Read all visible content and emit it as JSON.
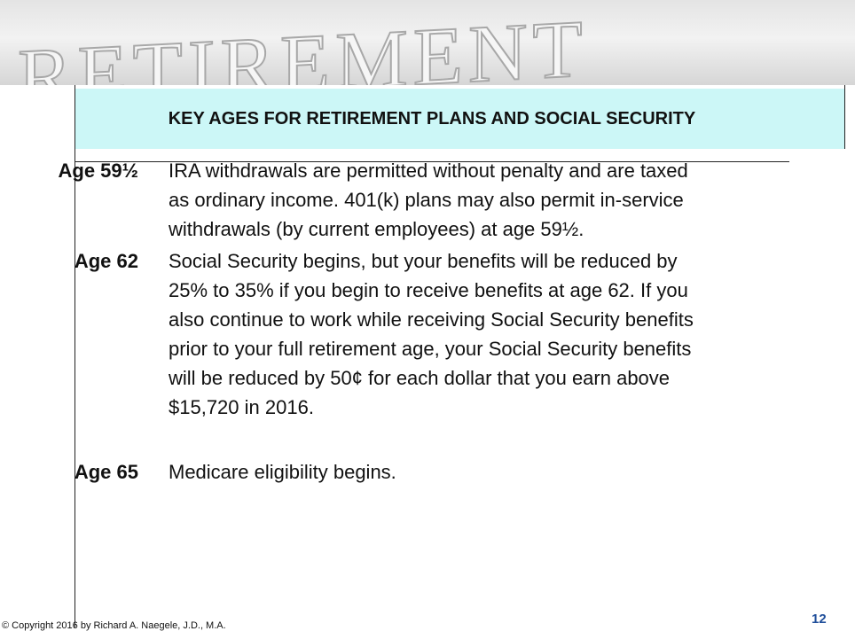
{
  "banner": {
    "text": "RETIREMENT"
  },
  "title": "KEY AGES FOR RETIREMENT PLANS AND SOCIAL SECURITY",
  "items": [
    {
      "age": "Age 59½",
      "lines": [
        "IRA withdrawals are permitted without penalty and are taxed",
        "as ordinary income.  401(k) plans may also permit in-service",
        "withdrawals (by current employees) at age 59½."
      ]
    },
    {
      "age": "Age 62",
      "lines": [
        "Social Security begins, but your benefits will be reduced by",
        "25% to 35% if you begin to receive benefits at age 62.  If you",
        "also continue to work while receiving Social Security benefits",
        "prior to your full retirement age, your Social Security benefits",
        "will be reduced by 50¢ for each dollar that you earn above",
        "$15,720 in 2016."
      ]
    },
    {
      "age": "Age 65",
      "lines": [
        "Medicare eligibility begins."
      ]
    }
  ],
  "footer": {
    "copyright": "© Copyright 2016 by Richard A. Naegele, J.D., M.A.",
    "page_number": "12"
  }
}
